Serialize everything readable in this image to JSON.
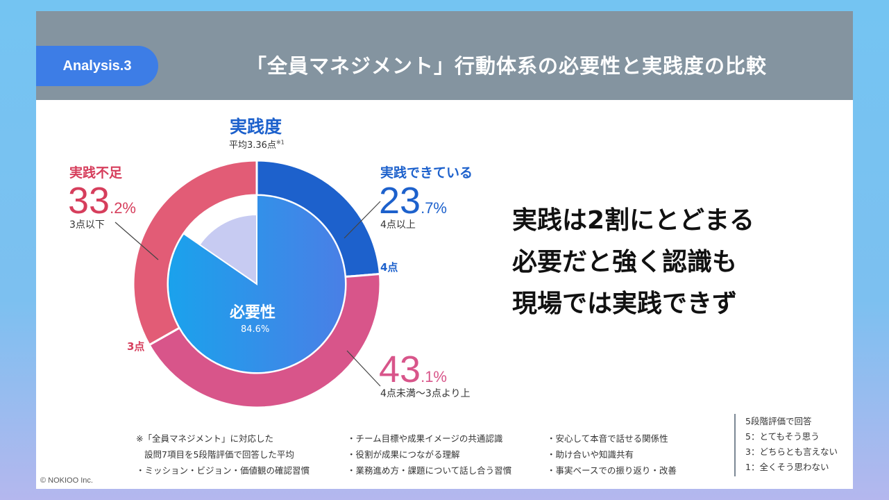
{
  "badge": "Analysis.3",
  "title": "「全員マネジメント」行動体系の必要性と実践度の比較",
  "colors": {
    "practiced": "#1d61cc",
    "lacking": "#e25c76",
    "mid": "#d8558a",
    "need_main": "#1a9be8",
    "need_light": "#c7cbf2",
    "header": "#8494a0",
    "badge": "#3d7de6"
  },
  "outer_label": {
    "title": "実践度",
    "subtitle": "平均3.36点",
    "note_mark": "※1"
  },
  "inner_label": {
    "title": "必要性",
    "value": "84.6%"
  },
  "callouts": {
    "practiced": {
      "label": "実践できている",
      "int": "23",
      "dec": ".7%",
      "sub": "4点以上"
    },
    "lacking": {
      "label": "実践不足",
      "int": "33",
      "dec": ".2%",
      "sub": "3点以下"
    },
    "mid": {
      "int": "43",
      "dec": ".1%",
      "sub": "4点未満〜3点より上"
    }
  },
  "threshold_labels": {
    "four": "4点",
    "three": "3点"
  },
  "headline": [
    "実践は2割にとどまる",
    "必要だと強く認識も",
    "現場では実践できず"
  ],
  "footnote": {
    "col1": [
      "※「全員マネジメント」に対応した",
      "設問7項目を5段階評価で回答した平均",
      "・ミッション・ビジョン・価値観の確認習慣"
    ],
    "col2": [
      "・チーム目標や成果イメージの共通認識",
      "・役割が成果につながる理解",
      "・業務進め方・課題について話し合う習慣"
    ],
    "col3": [
      "・安心して本音で話せる関係性",
      "・助け合いや知識共有",
      "・事実ベースでの振り返り・改善"
    ]
  },
  "scale": [
    "5段階評価で回答",
    "5：とてもそう思う",
    "3：どちらとも言えない",
    "1：全くそう思わない"
  ],
  "copyright": "© NOKIOO Inc.",
  "chart_data": [
    {
      "type": "pie",
      "title": "実践度",
      "subtitle": "平均3.36点",
      "ring": "outer",
      "slices": [
        {
          "label": "実践できている",
          "range": "4点以上",
          "value": 23.7
        },
        {
          "label": "",
          "range": "4点未満〜3点より上",
          "value": 43.1
        },
        {
          "label": "実践不足",
          "range": "3点以下",
          "value": 33.2
        }
      ]
    },
    {
      "type": "pie",
      "title": "必要性",
      "ring": "inner",
      "slices": [
        {
          "label": "必要性",
          "value": 84.6
        },
        {
          "label": "",
          "value": 15.4
        }
      ]
    }
  ]
}
